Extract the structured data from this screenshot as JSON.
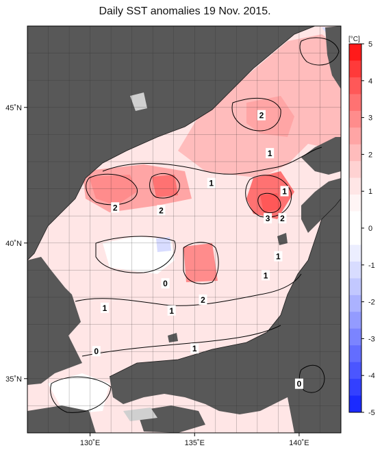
{
  "title": "Daily SST anomalies 19 Nov. 2015.",
  "units": "[°C]",
  "map": {
    "lon_range": [
      127,
      142
    ],
    "lat_range": [
      33,
      48
    ],
    "lon_ticks": [
      {
        "value": 130,
        "label": "130˚E"
      },
      {
        "value": 135,
        "label": "135˚E"
      },
      {
        "value": 140,
        "label": "140˚E"
      }
    ],
    "lat_ticks": [
      {
        "value": 45,
        "label": "45˚N"
      },
      {
        "value": 40,
        "label": "40˚N"
      },
      {
        "value": 35,
        "label": "35˚N"
      }
    ],
    "land_color": "#585858",
    "grid_color": "#2a2a2a"
  },
  "colorbar": {
    "ticks": [
      "5",
      "4",
      "3",
      "2",
      "1",
      "0",
      "-1",
      "-2",
      "-3",
      "-4",
      "-5"
    ],
    "colors": [
      "#ff1a1a",
      "#ff3a3a",
      "#ff5858",
      "#ff7272",
      "#ff8c8c",
      "#ffa5a5",
      "#ffbcbc",
      "#ffd2d2",
      "#ffe6e6",
      "#fff5f5",
      "#ffffff",
      "#ffffff",
      "#eceeff",
      "#d8dcff",
      "#c2c8ff",
      "#abb2ff",
      "#939bff",
      "#7b84ff",
      "#636dff",
      "#4b56ff",
      "#3340ff",
      "#1b2aff"
    ]
  },
  "contour_labels": [
    {
      "text": "2",
      "lon": 138.2,
      "lat": 44.7
    },
    {
      "text": "1",
      "lon": 138.6,
      "lat": 43.3
    },
    {
      "text": "1",
      "lon": 135.8,
      "lat": 42.2
    },
    {
      "text": "1",
      "lon": 139.3,
      "lat": 41.9
    },
    {
      "text": "2",
      "lon": 131.2,
      "lat": 41.3
    },
    {
      "text": "2",
      "lon": 133.4,
      "lat": 41.2
    },
    {
      "text": "3",
      "lon": 138.5,
      "lat": 40.9
    },
    {
      "text": "2",
      "lon": 139.2,
      "lat": 40.9
    },
    {
      "text": "1",
      "lon": 139.0,
      "lat": 39.5
    },
    {
      "text": "1",
      "lon": 138.4,
      "lat": 38.8
    },
    {
      "text": "0",
      "lon": 133.6,
      "lat": 38.5
    },
    {
      "text": "2",
      "lon": 135.4,
      "lat": 37.9
    },
    {
      "text": "1",
      "lon": 130.7,
      "lat": 37.6
    },
    {
      "text": "1",
      "lon": 133.9,
      "lat": 37.5
    },
    {
      "text": "1",
      "lon": 135.0,
      "lat": 36.1
    },
    {
      "text": "0",
      "lon": 130.3,
      "lat": 36.0
    },
    {
      "text": "0",
      "lon": 140.0,
      "lat": 34.8
    }
  ]
}
